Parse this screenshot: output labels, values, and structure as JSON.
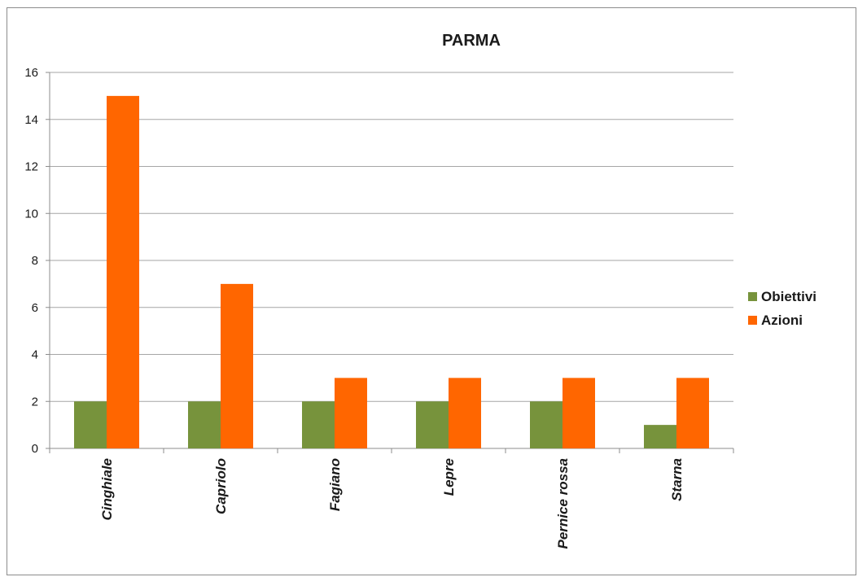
{
  "chart_data": {
    "type": "bar",
    "title": "PARMA",
    "categories": [
      "Cinghiale",
      "Capriolo",
      "Fagiano",
      "Lepre",
      "Pernice rossa",
      "Starna"
    ],
    "series": [
      {
        "name": "Obiettivi",
        "values": [
          2,
          2,
          2,
          2,
          2,
          1
        ],
        "color": "#77933c"
      },
      {
        "name": "Azioni",
        "values": [
          15,
          7,
          3,
          3,
          3,
          3
        ],
        "color": "#ff6600"
      }
    ],
    "ylim": [
      0,
      16
    ],
    "yticks": [
      0,
      2,
      4,
      6,
      8,
      10,
      12,
      14,
      16
    ],
    "grid": true,
    "legend_position": "right",
    "xlabel": "",
    "ylabel": ""
  }
}
